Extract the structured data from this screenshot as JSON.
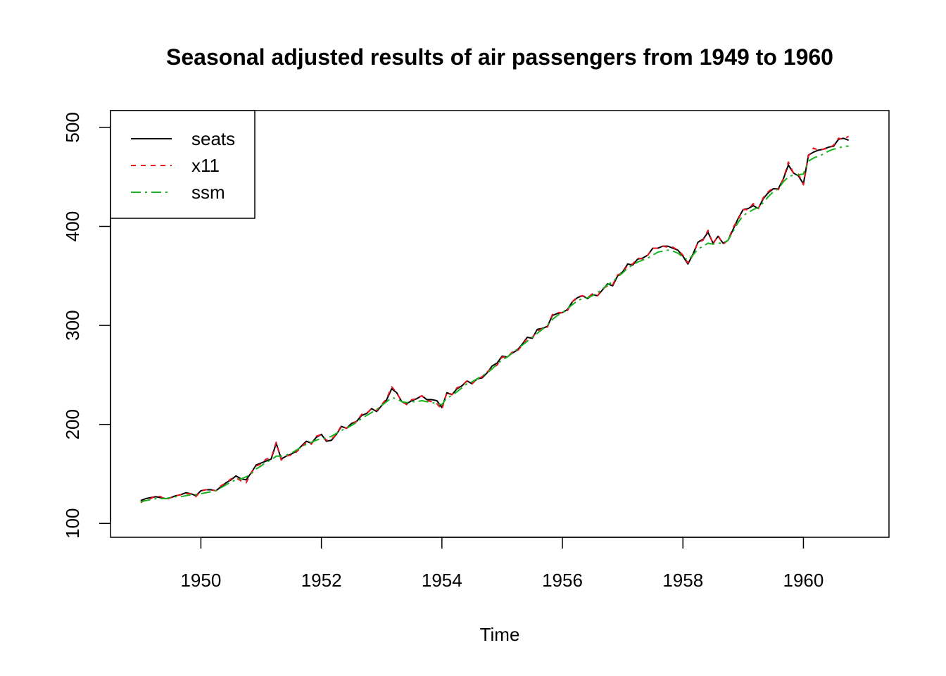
{
  "chart_data": {
    "type": "line",
    "title": "Seasonal adjusted results of air passengers from 1949 to 1960",
    "xlabel": "Time",
    "ylabel": "",
    "xlim": [
      1948.5,
      1961.42
    ],
    "ylim": [
      86,
      517
    ],
    "x_ticks": [
      1950,
      1952,
      1954,
      1956,
      1958,
      1960
    ],
    "x_tick_labels": [
      "1950",
      "1952",
      "1954",
      "1956",
      "1958",
      "1960"
    ],
    "y_ticks": [
      100,
      200,
      300,
      400,
      500
    ],
    "y_tick_labels": [
      "100",
      "200",
      "300",
      "400",
      "500"
    ],
    "legend_position": "top-left",
    "x_start": 1949,
    "x_step": 0.0833333,
    "series": [
      {
        "name": "seats",
        "color": "#000000",
        "dash": "",
        "values": [
          123,
          125,
          126,
          127,
          126,
          125,
          126,
          128,
          129,
          131,
          130,
          128,
          133,
          134,
          134,
          133,
          137,
          141,
          144,
          148,
          145,
          144,
          151,
          159,
          161,
          163,
          165,
          181,
          165,
          168,
          170,
          173,
          178,
          183,
          181,
          187,
          190,
          183,
          184,
          190,
          198,
          196,
          201,
          203,
          209,
          211,
          216,
          213,
          219,
          225,
          236,
          232,
          223,
          221,
          224,
          226,
          229,
          225,
          225,
          224,
          217,
          232,
          230,
          236,
          239,
          244,
          241,
          246,
          247,
          252,
          259,
          262,
          269,
          268,
          272,
          275,
          281,
          288,
          287,
          296,
          297,
          299,
          310,
          312,
          313,
          316,
          324,
          328,
          330,
          327,
          331,
          330,
          336,
          342,
          340,
          350,
          354,
          362,
          361,
          367,
          368,
          371,
          378,
          378,
          380,
          380,
          378,
          376,
          370,
          362,
          372,
          384,
          387,
          394,
          383,
          390,
          383,
          386,
          397,
          408,
          417,
          418,
          421,
          418,
          428,
          434,
          438,
          438,
          448,
          462,
          454,
          451,
          443,
          472,
          475,
          477,
          478,
          480,
          481,
          488,
          489,
          487
        ]
      },
      {
        "name": "x11",
        "color": "#e8131f",
        "dash": "7,7",
        "values": [
          121,
          124,
          125,
          128,
          127,
          124,
          126,
          128,
          129,
          130,
          130,
          127,
          133,
          134,
          134,
          133,
          138,
          141,
          145,
          146,
          143,
          141,
          151,
          158,
          160,
          165,
          166,
          182,
          164,
          168,
          169,
          172,
          177,
          182,
          180,
          188,
          190,
          184,
          185,
          190,
          199,
          196,
          200,
          203,
          210,
          211,
          216,
          214,
          220,
          226,
          238,
          232,
          223,
          220,
          225,
          226,
          229,
          224,
          223,
          221,
          215,
          233,
          230,
          237,
          239,
          244,
          241,
          246,
          248,
          253,
          257,
          260,
          268,
          268,
          273,
          274,
          280,
          287,
          288,
          294,
          297,
          298,
          311,
          313,
          313,
          315,
          324,
          329,
          330,
          328,
          332,
          330,
          337,
          340,
          341,
          351,
          353,
          361,
          362,
          368,
          367,
          371,
          378,
          378,
          380,
          379,
          379,
          376,
          371,
          363,
          371,
          384,
          386,
          396,
          382,
          391,
          382,
          386,
          399,
          407,
          417,
          417,
          423,
          418,
          429,
          435,
          439,
          437,
          448,
          465,
          454,
          453,
          442,
          471,
          479,
          477,
          478,
          479,
          482,
          489,
          488,
          491
        ]
      },
      {
        "name": "ssm",
        "color": "#17b31e",
        "dash": "14,6,3,6",
        "values": [
          122,
          123,
          124,
          125,
          125,
          125,
          126,
          127,
          127,
          128,
          129,
          129,
          130,
          131,
          132,
          133,
          136,
          139,
          142,
          144,
          145,
          147,
          150,
          155,
          158,
          162,
          164,
          168,
          168,
          169,
          171,
          174,
          177,
          180,
          182,
          184,
          186,
          186,
          188,
          191,
          194,
          196,
          199,
          202,
          206,
          209,
          212,
          215,
          219,
          223,
          227,
          226,
          223,
          222,
          223,
          223,
          224,
          223,
          222,
          221,
          220,
          227,
          229,
          233,
          237,
          241,
          243,
          246,
          249,
          252,
          256,
          261,
          265,
          268,
          272,
          276,
          280,
          284,
          288,
          292,
          296,
          300,
          306,
          310,
          313,
          317,
          321,
          325,
          327,
          328,
          330,
          333,
          337,
          341,
          344,
          349,
          353,
          358,
          361,
          364,
          366,
          368,
          371,
          374,
          375,
          376,
          375,
          373,
          369,
          366,
          371,
          377,
          380,
          383,
          382,
          383,
          383,
          386,
          395,
          404,
          411,
          414,
          417,
          419,
          424,
          430,
          435,
          438,
          445,
          450,
          452,
          452,
          453,
          466,
          469,
          471,
          473,
          476,
          478,
          479,
          481,
          481
        ]
      }
    ]
  }
}
